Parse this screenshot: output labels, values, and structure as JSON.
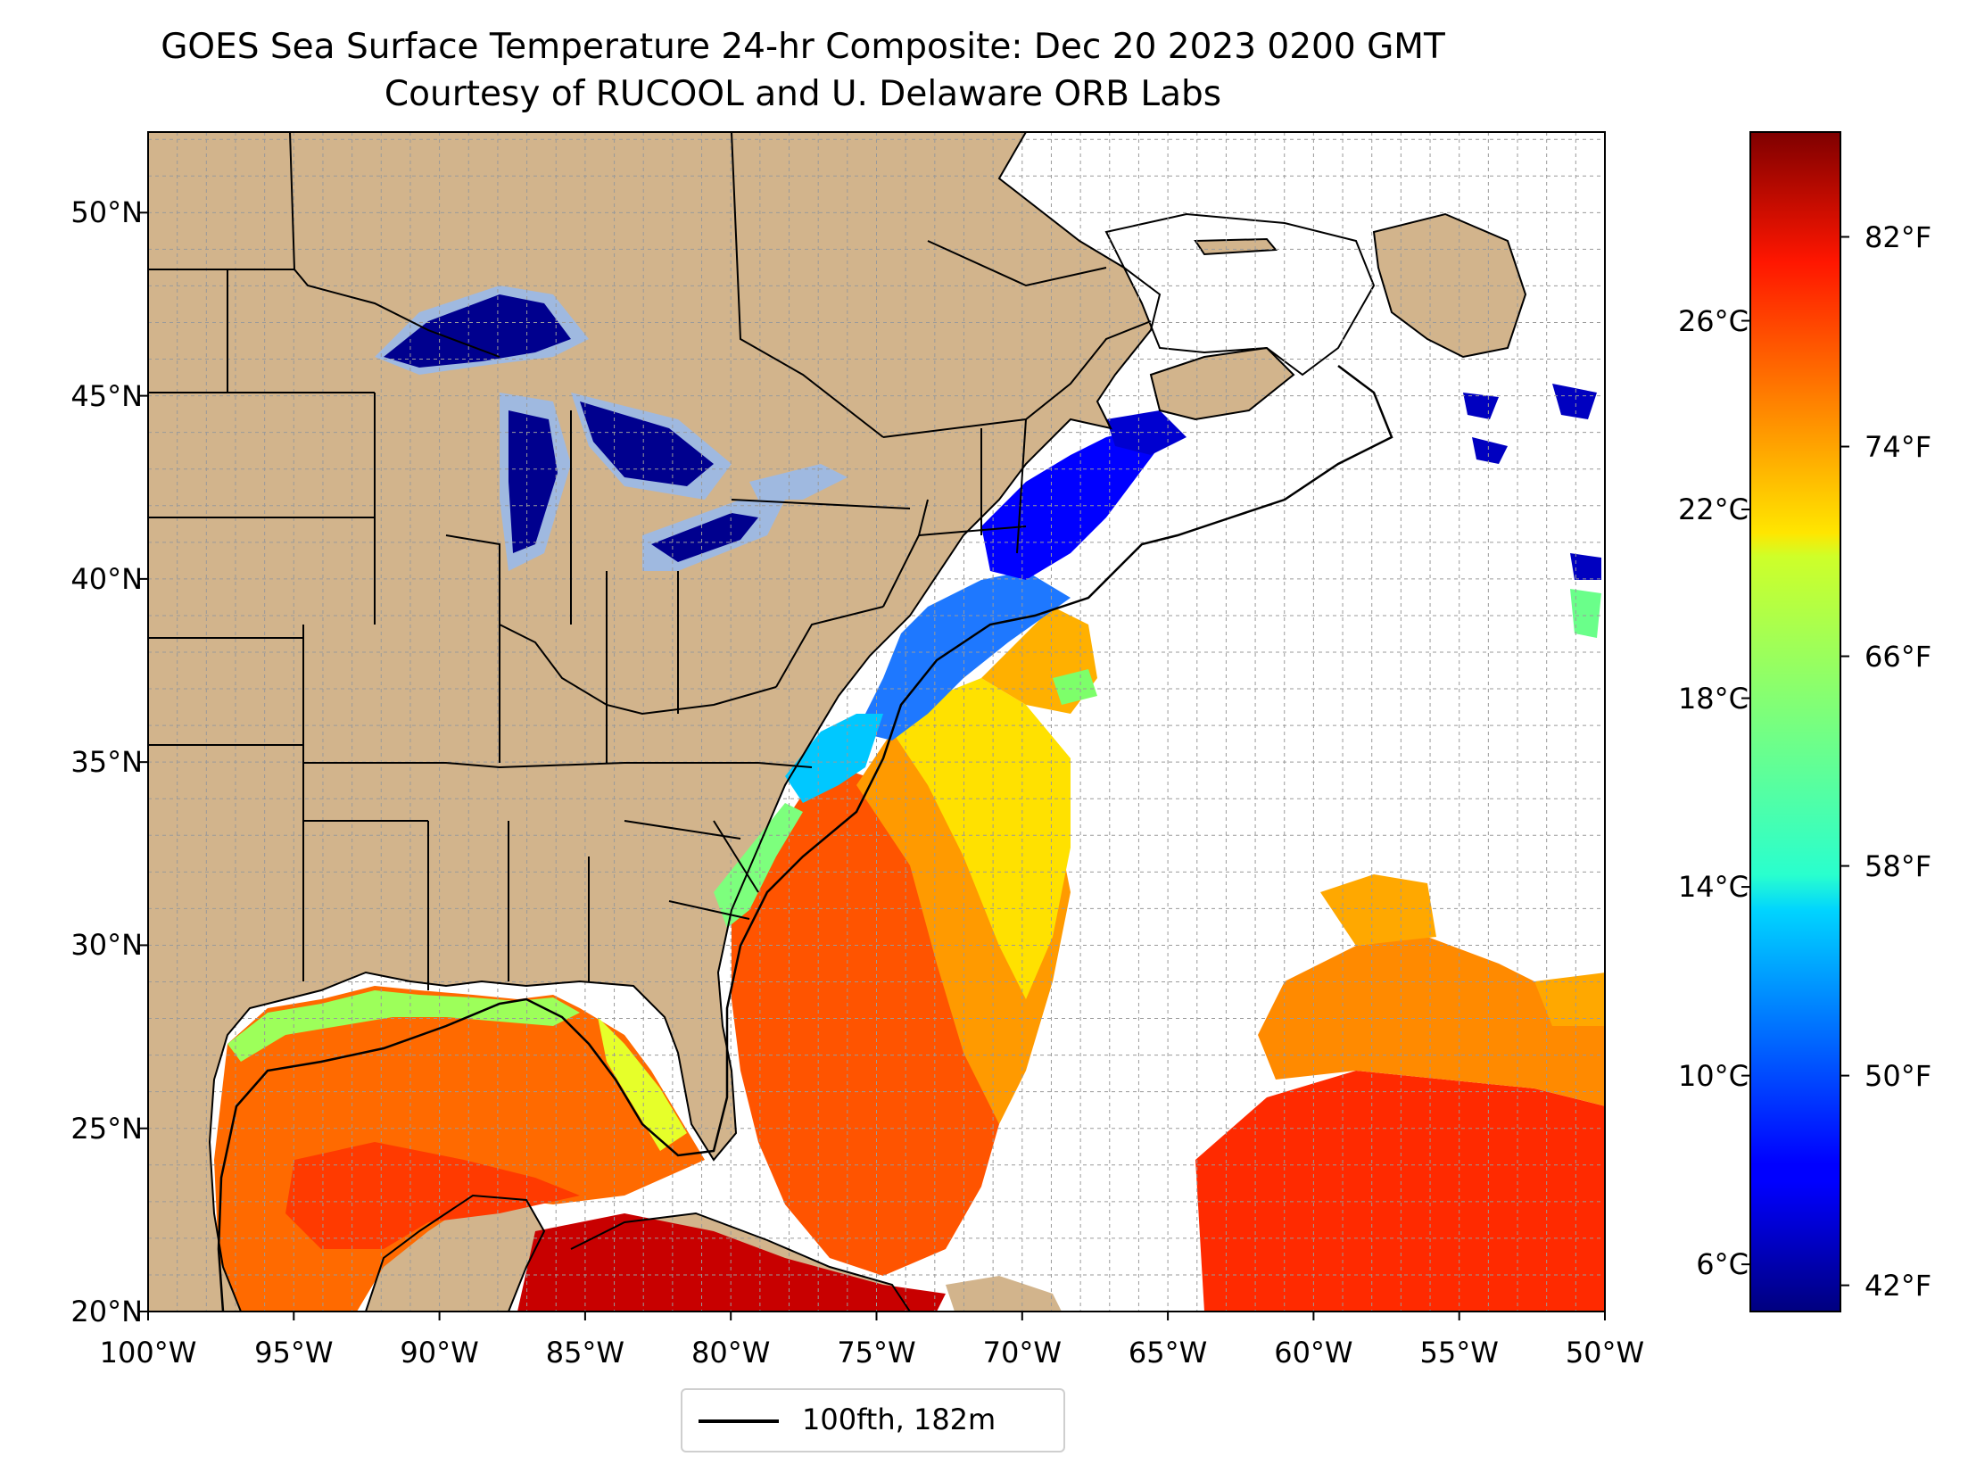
{
  "title": {
    "line1": "GOES Sea Surface Temperature 24-hr Composite: Dec 20 2023 0200 GMT",
    "line2": "Courtesy of RUCOOL and U. Delaware ORB Labs"
  },
  "map": {
    "lon_range": [
      -100,
      -50
    ],
    "lat_range": [
      20,
      52.2
    ],
    "colors": {
      "land": "#d2b48c",
      "no_data": "#ffffff",
      "lakes_ice": "#9fb9e0",
      "lake_cold": "#00008e",
      "grid": "#9a9a9a",
      "borders": "#000000"
    },
    "lat_ticks": [
      {
        "value": 20,
        "label": "20°N"
      },
      {
        "value": 25,
        "label": "25°N"
      },
      {
        "value": 30,
        "label": "30°N"
      },
      {
        "value": 35,
        "label": "35°N"
      },
      {
        "value": 40,
        "label": "40°N"
      },
      {
        "value": 45,
        "label": "45°N"
      },
      {
        "value": 50,
        "label": "50°N"
      }
    ],
    "lon_ticks": [
      {
        "value": -100,
        "label": "100°W"
      },
      {
        "value": -95,
        "label": "95°W"
      },
      {
        "value": -90,
        "label": "90°W"
      },
      {
        "value": -85,
        "label": "85°W"
      },
      {
        "value": -80,
        "label": "80°W"
      },
      {
        "value": -75,
        "label": "75°W"
      },
      {
        "value": -70,
        "label": "70°W"
      },
      {
        "value": -65,
        "label": "65°W"
      },
      {
        "value": -60,
        "label": "60°W"
      },
      {
        "value": -55,
        "label": "55°W"
      },
      {
        "value": -50,
        "label": "50°W"
      }
    ]
  },
  "colorbar": {
    "range_c": [
      5,
      30
    ],
    "colormap": "jet",
    "celsius_ticks": [
      {
        "value": 6,
        "label": "6°C"
      },
      {
        "value": 10,
        "label": "10°C"
      },
      {
        "value": 14,
        "label": "14°C"
      },
      {
        "value": 18,
        "label": "18°C"
      },
      {
        "value": 22,
        "label": "22°C"
      },
      {
        "value": 26,
        "label": "26°C"
      }
    ],
    "fahrenheit_ticks": [
      {
        "value": 42,
        "label": "42°F"
      },
      {
        "value": 50,
        "label": "50°F"
      },
      {
        "value": 58,
        "label": "58°F"
      },
      {
        "value": 66,
        "label": "66°F"
      },
      {
        "value": 74,
        "label": "74°F"
      },
      {
        "value": 82,
        "label": "82°F"
      }
    ]
  },
  "legend": {
    "label": "100fth, 182m",
    "line_color": "#000000"
  }
}
